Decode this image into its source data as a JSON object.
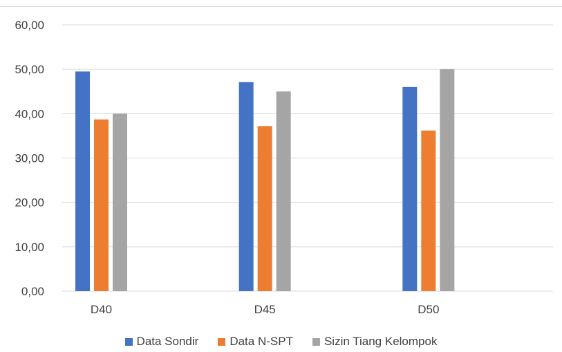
{
  "chart_data": {
    "type": "bar",
    "title": "",
    "xlabel": "",
    "ylabel": "",
    "categories": [
      "D40",
      "D45",
      "D50"
    ],
    "series": [
      {
        "name": "Data Sondir",
        "color": "#4472c4",
        "values": [
          49.5,
          47.1,
          46.0
        ]
      },
      {
        "name": "Data N-SPT",
        "color": "#ed7d31",
        "values": [
          38.7,
          37.2,
          36.2
        ]
      },
      {
        "name": "Sizin Tiang Kelompok",
        "color": "#a5a5a5",
        "values": [
          40.0,
          45.0,
          50.0
        ]
      }
    ],
    "ylim": [
      0,
      60
    ],
    "yticks": [
      "0,00",
      "10,00",
      "20,00",
      "30,00",
      "40,00",
      "50,00",
      "60,00"
    ],
    "grid": true,
    "legend_position": "bottom"
  }
}
